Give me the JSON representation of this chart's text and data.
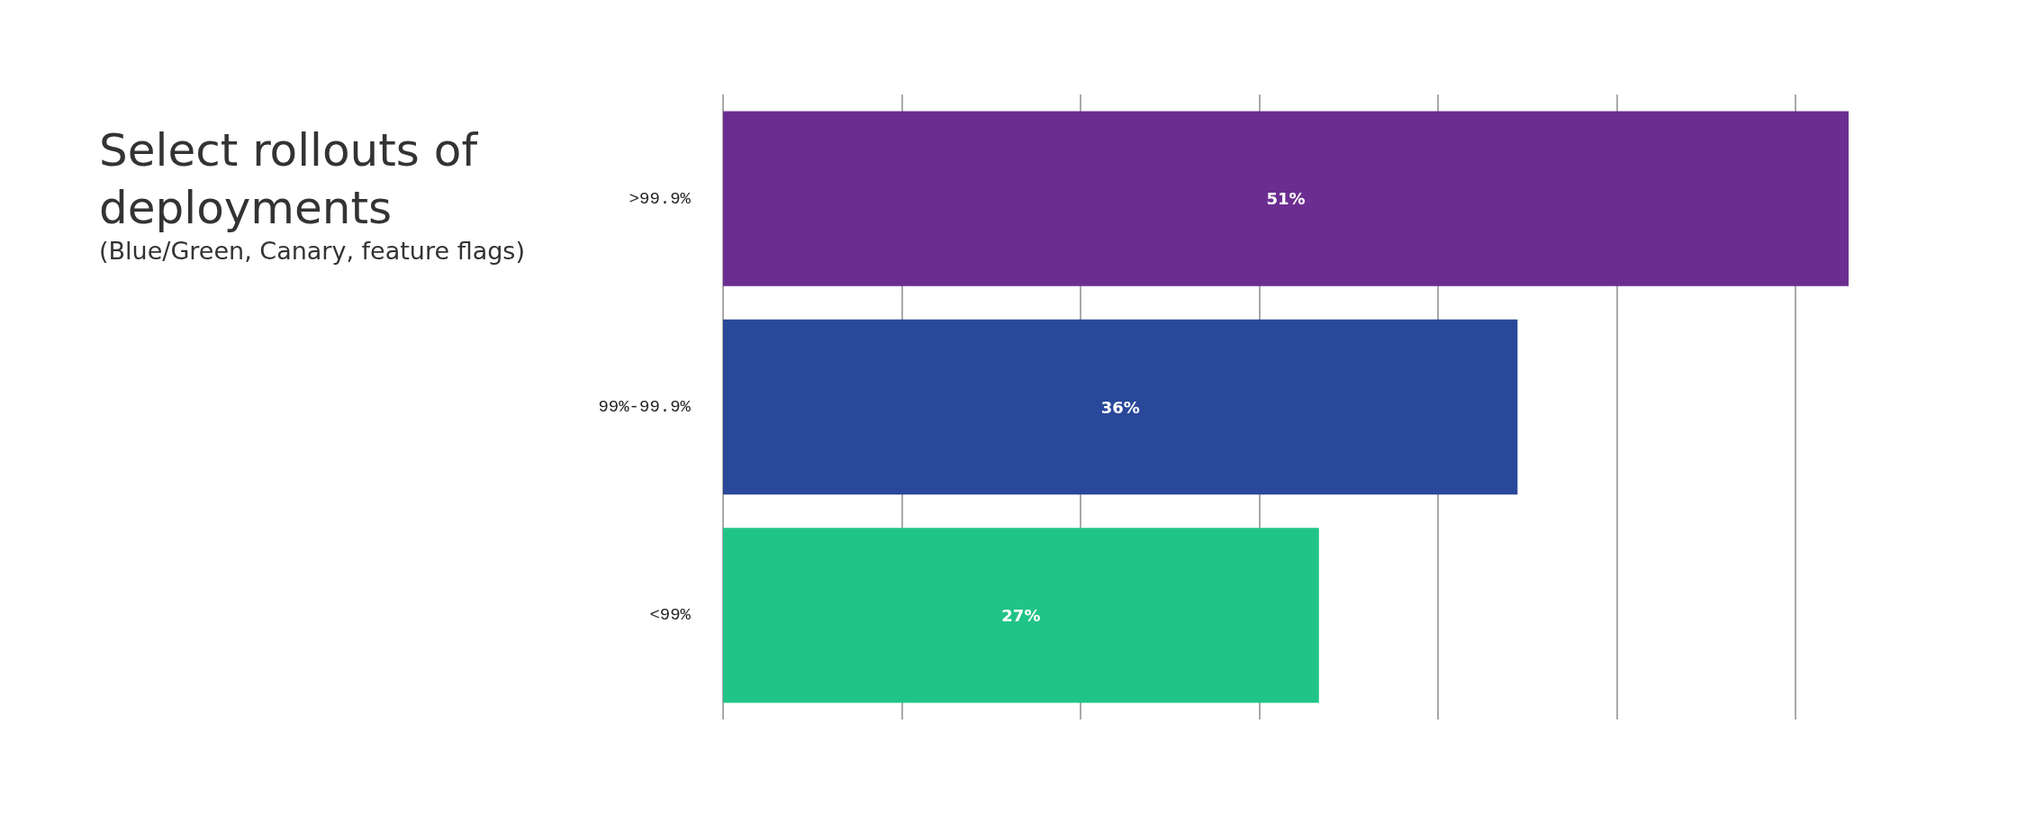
{
  "chart_data": {
    "type": "bar",
    "orientation": "horizontal",
    "title": "Select rollouts of deployments",
    "subtitle": "(Blue/Green, Canary, feature flags)",
    "categories": [
      ">99.9%",
      "99%-99.9%",
      "<99%"
    ],
    "values": [
      51,
      36,
      27
    ],
    "colors": [
      "#6c2d91",
      "#2a4899",
      "#21c487"
    ],
    "value_labels": [
      "51%",
      "36%",
      "27%"
    ],
    "xticks": [
      {
        "value": 0,
        "label": null
      },
      {
        "value": 8.1,
        "label": null
      },
      {
        "value": 16.2,
        "label": null
      },
      {
        "value": 24.3,
        "label": null
      },
      {
        "value": 32.4,
        "label": null
      },
      {
        "value": 40.5,
        "label": null
      },
      {
        "value": 48.6,
        "label": null
      }
    ],
    "grid": "x",
    "tick_labels": "y"
  }
}
